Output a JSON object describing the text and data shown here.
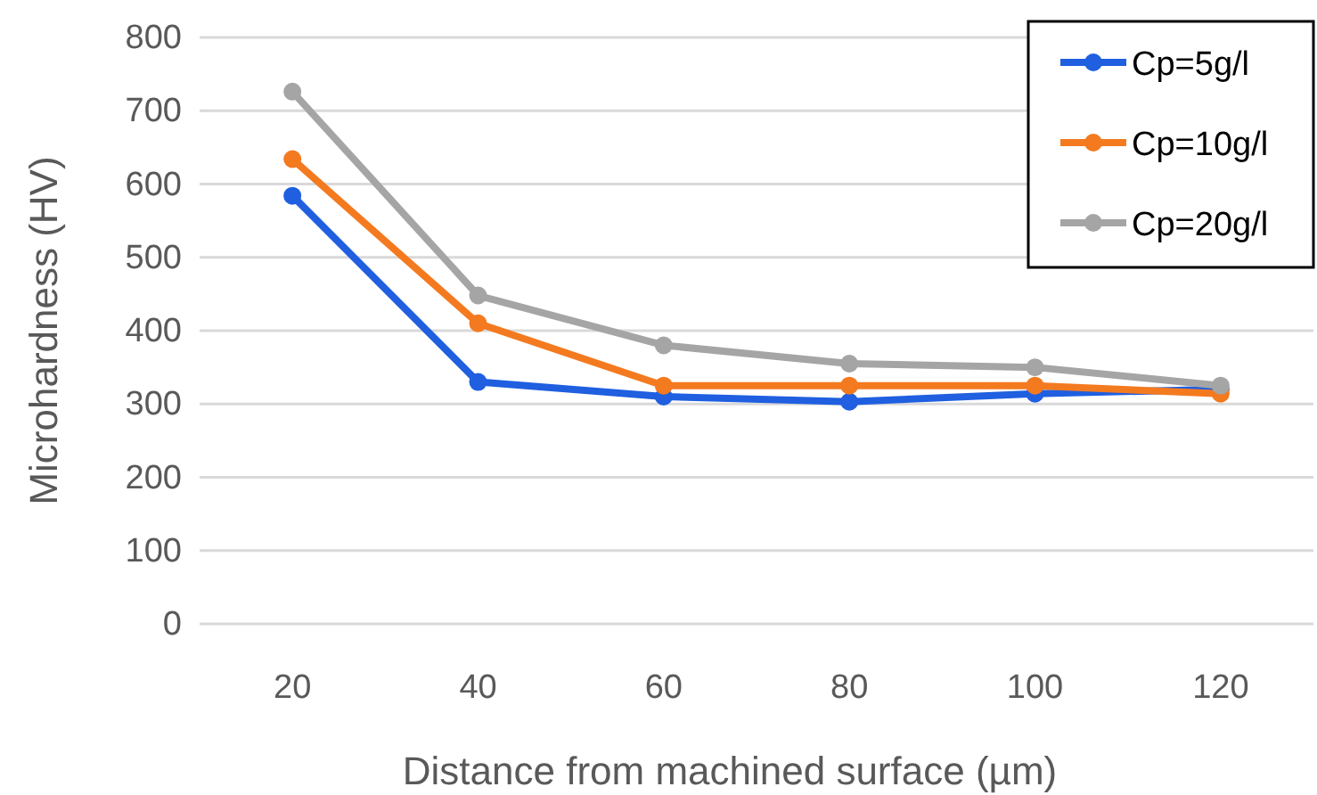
{
  "chart_data": {
    "type": "line",
    "xlabel": "Distance from machined surface (µm)",
    "ylabel": "Microhardness (HV)",
    "categories": [
      "20",
      "40",
      "60",
      "80",
      "100",
      "120"
    ],
    "series": [
      {
        "name": "Cp=5g/l",
        "color": "#1f5fe0",
        "values": [
          584,
          330,
          310,
          303,
          314,
          320
        ]
      },
      {
        "name": "Cp=10g/l",
        "color": "#f47a20",
        "values": [
          634,
          410,
          325,
          325,
          325,
          314
        ]
      },
      {
        "name": "Cp=20g/l",
        "color": "#a5a5a5",
        "values": [
          726,
          448,
          380,
          355,
          350,
          325
        ]
      }
    ],
    "ylim": [
      0,
      800
    ],
    "yticks": [
      0,
      100,
      200,
      300,
      400,
      500,
      600,
      700,
      800
    ],
    "grid": "y",
    "legend": "top right",
    "marker": "circle",
    "line_style": "solid"
  }
}
